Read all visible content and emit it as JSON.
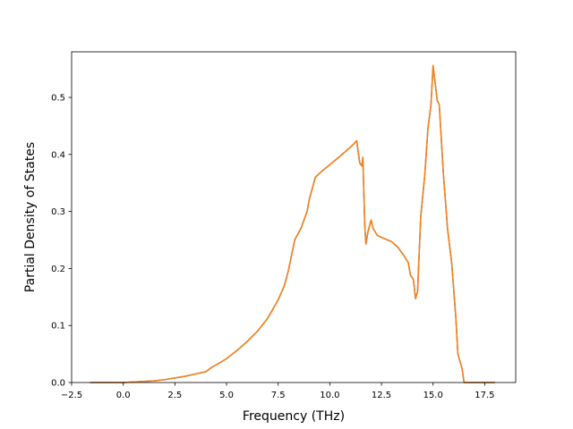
{
  "chart_data": {
    "type": "line",
    "title": "",
    "xlabel": "Frequency (THz)",
    "ylabel": "Partial Density of States",
    "xlim": [
      -2.5,
      19.0
    ],
    "ylim": [
      0.0,
      0.58
    ],
    "xticks": [
      -2.5,
      0.0,
      2.5,
      5.0,
      7.5,
      10.0,
      12.5,
      15.0,
      17.5
    ],
    "xtick_labels": [
      "−2.5",
      "0.0",
      "2.5",
      "5.0",
      "7.5",
      "10.0",
      "12.5",
      "15.0",
      "17.5"
    ],
    "yticks": [
      0.0,
      0.1,
      0.2,
      0.3,
      0.4,
      0.5
    ],
    "ytick_labels": [
      "0.0",
      "0.1",
      "0.2",
      "0.3",
      "0.4",
      "0.5"
    ],
    "grid": false,
    "series": [
      {
        "color": "#1f77b4",
        "x": [
          -1.6,
          -1.0,
          0.0,
          0.5,
          1.0,
          1.5,
          2.0,
          2.5,
          3.0,
          3.5,
          4.0,
          4.3,
          4.6,
          5.0,
          5.5,
          6.0,
          6.5,
          7.0,
          7.5,
          7.8,
          8.0,
          8.3,
          8.6,
          8.9,
          9.0,
          9.3,
          9.6,
          10.0,
          10.5,
          11.0,
          11.15,
          11.3,
          11.45,
          11.55,
          11.6,
          11.65,
          11.7,
          11.75,
          11.85,
          12.0,
          12.1,
          12.3,
          12.6,
          13.0,
          13.3,
          13.6,
          13.8,
          13.9,
          14.05,
          14.15,
          14.25,
          14.4,
          14.6,
          14.75,
          14.9,
          15.0,
          15.2,
          15.3,
          15.5,
          15.7,
          15.9,
          16.1,
          16.2,
          16.4,
          16.5,
          16.6,
          17.0,
          17.5,
          18.0
        ],
        "y": [
          0.0,
          0.0,
          0.0,
          0.001,
          0.002,
          0.003,
          0.005,
          0.008,
          0.011,
          0.015,
          0.019,
          0.027,
          0.033,
          0.042,
          0.056,
          0.072,
          0.09,
          0.113,
          0.145,
          0.17,
          0.197,
          0.25,
          0.27,
          0.3,
          0.32,
          0.36,
          0.37,
          0.382,
          0.397,
          0.413,
          0.418,
          0.424,
          0.385,
          0.38,
          0.395,
          0.33,
          0.27,
          0.243,
          0.265,
          0.285,
          0.27,
          0.258,
          0.253,
          0.247,
          0.237,
          0.222,
          0.21,
          0.189,
          0.18,
          0.147,
          0.16,
          0.29,
          0.365,
          0.445,
          0.488,
          0.556,
          0.495,
          0.487,
          0.365,
          0.27,
          0.21,
          0.115,
          0.05,
          0.025,
          0.0,
          0.0,
          0.0,
          0.0,
          0.0
        ]
      },
      {
        "color": "#ff7f0e",
        "x": [
          -1.6,
          -1.0,
          0.0,
          0.5,
          1.0,
          1.5,
          2.0,
          2.5,
          3.0,
          3.5,
          4.0,
          4.3,
          4.6,
          5.0,
          5.5,
          6.0,
          6.5,
          7.0,
          7.5,
          7.8,
          8.0,
          8.3,
          8.6,
          8.9,
          9.0,
          9.3,
          9.6,
          10.0,
          10.5,
          11.0,
          11.15,
          11.3,
          11.45,
          11.55,
          11.6,
          11.65,
          11.7,
          11.75,
          11.85,
          12.0,
          12.1,
          12.3,
          12.6,
          13.0,
          13.3,
          13.6,
          13.8,
          13.9,
          14.05,
          14.15,
          14.25,
          14.4,
          14.6,
          14.75,
          14.9,
          15.0,
          15.2,
          15.3,
          15.5,
          15.7,
          15.9,
          16.1,
          16.2,
          16.4,
          16.5,
          16.6,
          17.0,
          17.5,
          18.0
        ],
        "y": [
          0.0,
          0.0,
          0.0,
          0.001,
          0.002,
          0.003,
          0.005,
          0.008,
          0.011,
          0.015,
          0.019,
          0.027,
          0.033,
          0.042,
          0.056,
          0.072,
          0.09,
          0.113,
          0.145,
          0.17,
          0.197,
          0.25,
          0.27,
          0.3,
          0.32,
          0.36,
          0.37,
          0.382,
          0.397,
          0.413,
          0.418,
          0.424,
          0.385,
          0.38,
          0.395,
          0.33,
          0.27,
          0.243,
          0.265,
          0.285,
          0.27,
          0.258,
          0.253,
          0.247,
          0.237,
          0.222,
          0.21,
          0.189,
          0.18,
          0.147,
          0.16,
          0.29,
          0.365,
          0.445,
          0.488,
          0.556,
          0.495,
          0.487,
          0.365,
          0.27,
          0.21,
          0.115,
          0.05,
          0.025,
          0.0,
          0.0,
          0.0,
          0.0,
          0.0
        ]
      }
    ]
  }
}
